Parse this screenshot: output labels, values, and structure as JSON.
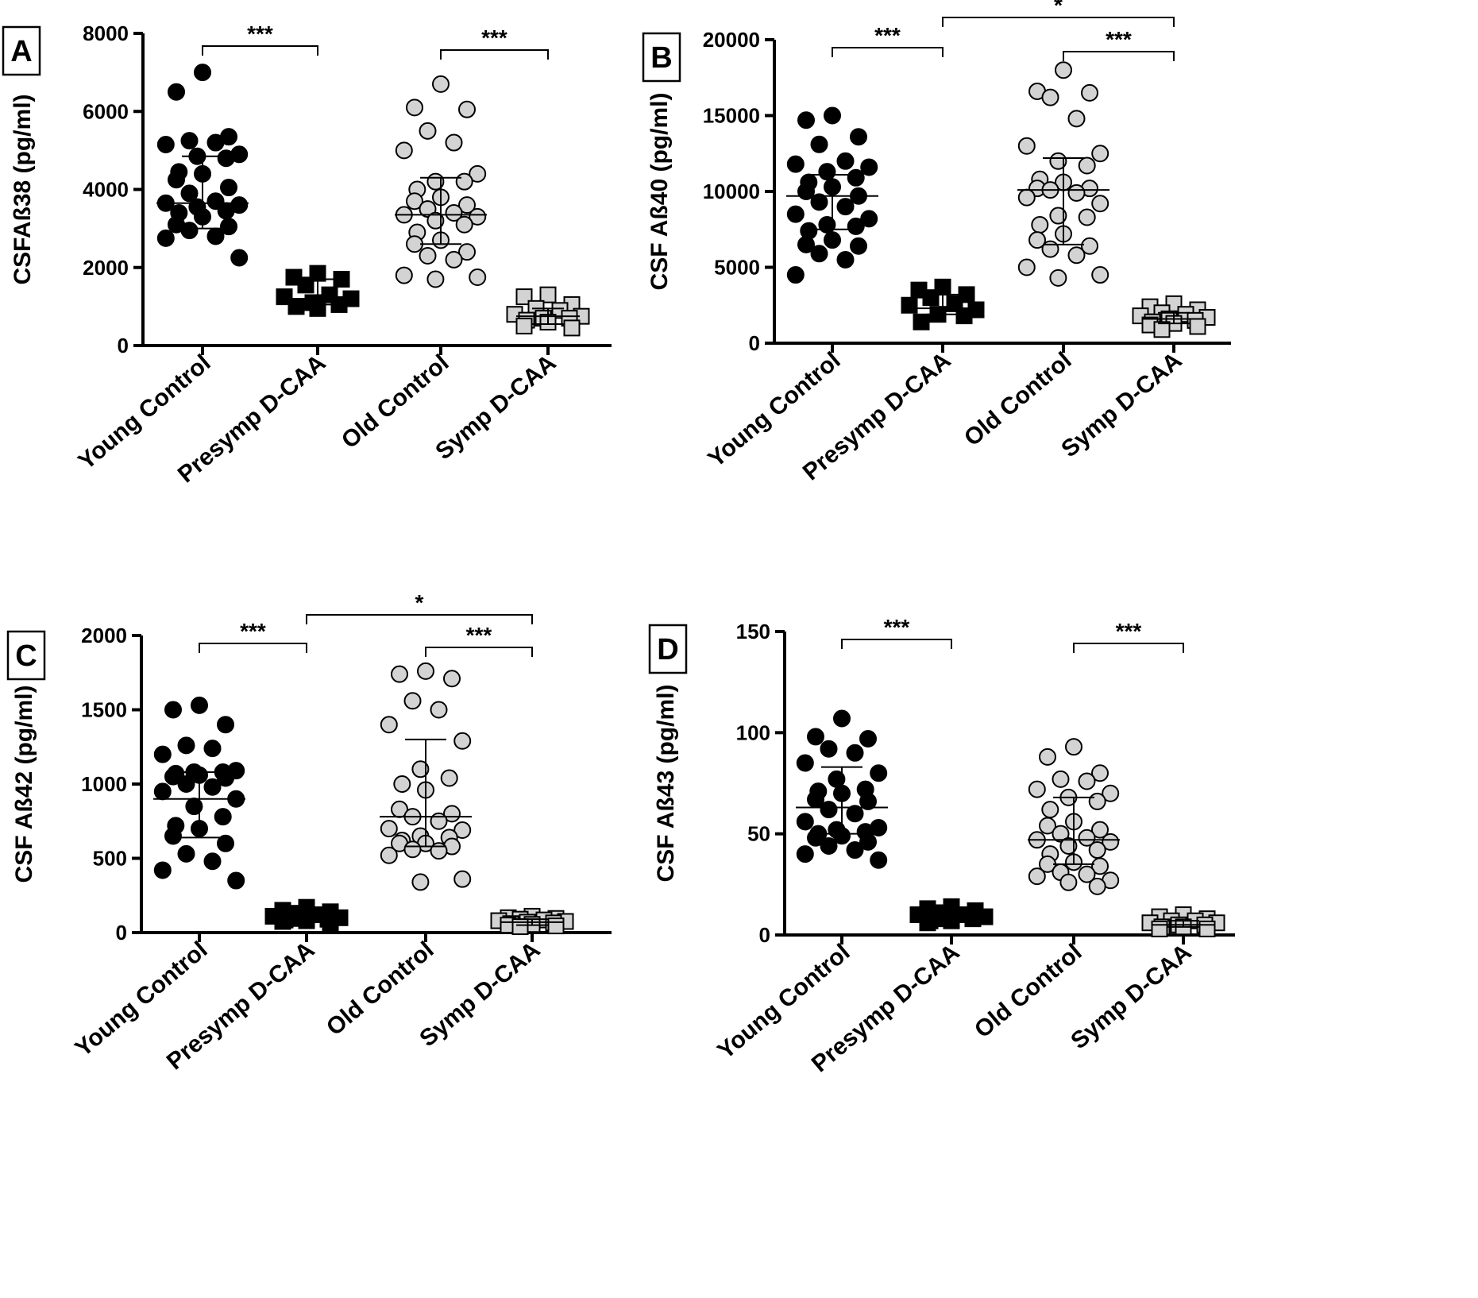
{
  "colors": {
    "young_control": "#000000",
    "presymp": "#000000",
    "old_control": "#d3d3d3",
    "symp": "#d3d3d3",
    "outline": "#000000"
  },
  "chart_data": [
    {
      "type": "scatter",
      "panel": "A",
      "ylabel": "CSFAß38 (pg/ml)",
      "categories": [
        "Young Control",
        "Presymp D-CAA",
        "Old Control",
        "Symp D-CAA"
      ],
      "ylim": [
        0,
        8000
      ],
      "yticks": [
        "0",
        "2000",
        "4000",
        "6000",
        "8000"
      ],
      "ytick_values": [
        0,
        2000,
        4000,
        6000,
        8000
      ],
      "series": [
        {
          "name": "Young Control",
          "marker": "circle",
          "fill": "black",
          "values": [
            7000,
            6500,
            5350,
            5250,
            5200,
            5150,
            4900,
            4850,
            4800,
            4450,
            4400,
            4250,
            4050,
            3900,
            3700,
            3650,
            3600,
            3550,
            3450,
            3400,
            3300,
            3100,
            3050,
            2950,
            2800,
            2750,
            2250
          ],
          "median": 3650,
          "iqr": [
            3000,
            4850
          ]
        },
        {
          "name": "Presymp D-CAA",
          "marker": "square",
          "fill": "black",
          "values": [
            1850,
            1750,
            1700,
            1550,
            1300,
            1250,
            1200,
            1100,
            1050,
            1000,
            950
          ],
          "median": 1200,
          "iqr": [
            1050,
            1700
          ]
        },
        {
          "name": "Old Control",
          "marker": "circle",
          "fill": "lightgray",
          "values": [
            6700,
            6100,
            6050,
            5500,
            5200,
            5000,
            4400,
            4200,
            4200,
            4000,
            3800,
            3700,
            3600,
            3500,
            3400,
            3350,
            3300,
            3200,
            3100,
            2900,
            2700,
            2600,
            2400,
            2300,
            2200,
            1800,
            1750,
            1700
          ],
          "median": 3350,
          "iqr": [
            2600,
            4300
          ]
        },
        {
          "name": "Symp D-CAA",
          "marker": "square",
          "fill": "lightgray",
          "values": [
            1300,
            1250,
            1050,
            950,
            900,
            800,
            750,
            700,
            700,
            650,
            600,
            500,
            450
          ],
          "median": 750,
          "iqr": [
            550,
            950
          ]
        }
      ],
      "significance": [
        {
          "from": 0,
          "to": 1,
          "label": "***"
        },
        {
          "from": 2,
          "to": 3,
          "label": "***"
        }
      ]
    },
    {
      "type": "scatter",
      "panel": "B",
      "ylabel": "CSF Aß40 (pg/ml)",
      "categories": [
        "Young Control",
        "Presymp D-CAA",
        "Old Control",
        "Symp D-CAA"
      ],
      "ylim": [
        0,
        20000
      ],
      "yticks": [
        "0",
        "5000",
        "10000",
        "15000",
        "20000"
      ],
      "ytick_values": [
        0,
        5000,
        10000,
        15000,
        20000
      ],
      "series": [
        {
          "name": "Young Control",
          "marker": "circle",
          "fill": "black",
          "values": [
            15000,
            14700,
            13600,
            13100,
            12000,
            11800,
            11600,
            11300,
            10900,
            10600,
            10300,
            10000,
            9700,
            9300,
            9000,
            8500,
            8200,
            7800,
            7700,
            7400,
            6800,
            6500,
            6400,
            5900,
            5500,
            4500
          ],
          "median": 9700,
          "iqr": [
            7500,
            11100
          ]
        },
        {
          "name": "Presymp D-CAA",
          "marker": "square",
          "fill": "black",
          "values": [
            3700,
            3500,
            3200,
            3000,
            2600,
            2500,
            2200,
            1900,
            1800,
            1400
          ],
          "median": 2300,
          "iqr": [
            1900,
            3200
          ]
        },
        {
          "name": "Old Control",
          "marker": "circle",
          "fill": "lightgray",
          "values": [
            18000,
            16600,
            16500,
            16200,
            14800,
            13000,
            12500,
            12000,
            11700,
            10800,
            10600,
            10200,
            10200,
            10100,
            9900,
            9600,
            9200,
            8400,
            8300,
            7800,
            7200,
            6800,
            6400,
            6200,
            5800,
            5000,
            4500,
            4300
          ],
          "median": 10100,
          "iqr": [
            6500,
            12200
          ]
        },
        {
          "name": "Symp D-CAA",
          "marker": "square",
          "fill": "lightgray",
          "values": [
            2600,
            2400,
            2200,
            2000,
            1900,
            1800,
            1700,
            1600,
            1500,
            1400,
            1300,
            1200,
            1100,
            900
          ],
          "median": 1600,
          "iqr": [
            1300,
            2000
          ]
        }
      ],
      "significance": [
        {
          "from": 0,
          "to": 1,
          "label": "***"
        },
        {
          "from": 1,
          "to": 3,
          "label": "*"
        },
        {
          "from": 2,
          "to": 3,
          "label": "***"
        }
      ]
    },
    {
      "type": "scatter",
      "panel": "C",
      "ylabel": "CSF Aß42 (pg/ml)",
      "categories": [
        "Young Control",
        "Presymp D-CAA",
        "Old Control",
        "Symp D-CAA"
      ],
      "ylim": [
        0,
        2000
      ],
      "yticks": [
        "0",
        "500",
        "1000",
        "1500",
        "2000"
      ],
      "ytick_values": [
        0,
        500,
        1000,
        1500,
        2000
      ],
      "series": [
        {
          "name": "Young Control",
          "marker": "circle",
          "fill": "black",
          "values": [
            1530,
            1500,
            1400,
            1260,
            1240,
            1200,
            1090,
            1080,
            1080,
            1070,
            1060,
            1050,
            1040,
            1000,
            980,
            950,
            900,
            850,
            780,
            720,
            700,
            650,
            600,
            530,
            480,
            420,
            350
          ],
          "median": 900,
          "iqr": [
            640,
            1080
          ]
        },
        {
          "name": "Presymp D-CAA",
          "marker": "square",
          "fill": "black",
          "values": [
            170,
            150,
            140,
            130,
            120,
            110,
            100,
            95,
            90,
            85,
            80,
            75,
            60
          ],
          "median": 110,
          "iqr": [
            80,
            140
          ]
        },
        {
          "name": "Old Control",
          "marker": "circle",
          "fill": "lightgray",
          "values": [
            1760,
            1740,
            1710,
            1560,
            1500,
            1400,
            1290,
            1100,
            1040,
            1000,
            960,
            830,
            800,
            780,
            750,
            700,
            690,
            650,
            640,
            620,
            600,
            600,
            580,
            560,
            550,
            520,
            360,
            340
          ],
          "median": 780,
          "iqr": [
            580,
            1300
          ]
        },
        {
          "name": "Symp D-CAA",
          "marker": "square",
          "fill": "lightgray",
          "values": [
            110,
            100,
            95,
            90,
            85,
            80,
            75,
            70,
            65,
            60,
            55,
            50,
            45,
            40
          ],
          "median": 70,
          "iqr": [
            50,
            90
          ]
        }
      ],
      "significance": [
        {
          "from": 0,
          "to": 1,
          "label": "***"
        },
        {
          "from": 1,
          "to": 3,
          "label": "*"
        },
        {
          "from": 2,
          "to": 3,
          "label": "***"
        }
      ]
    },
    {
      "type": "scatter",
      "panel": "D",
      "ylabel": "CSF Aß43 (pg/ml)",
      "categories": [
        "Young Control",
        "Presymp D-CAA",
        "Old Control",
        "Symp D-CAA"
      ],
      "ylim": [
        0,
        150
      ],
      "yticks": [
        "0",
        "50",
        "100",
        "150"
      ],
      "ytick_values": [
        0,
        50,
        100,
        150
      ],
      "series": [
        {
          "name": "Young Control",
          "marker": "circle",
          "fill": "black",
          "values": [
            107,
            98,
            97,
            92,
            90,
            85,
            80,
            77,
            72,
            71,
            70,
            67,
            66,
            62,
            60,
            56,
            53,
            52,
            51,
            50,
            49,
            48,
            46,
            44,
            42,
            40,
            37
          ],
          "median": 63,
          "iqr": [
            50,
            83
          ]
        },
        {
          "name": "Presymp D-CAA",
          "marker": "square",
          "fill": "black",
          "values": [
            14,
            13,
            12,
            11,
            10,
            10,
            9,
            8,
            8,
            7,
            7,
            6
          ],
          "median": 10,
          "iqr": [
            8,
            12
          ]
        },
        {
          "name": "Old Control",
          "marker": "circle",
          "fill": "lightgray",
          "values": [
            93,
            88,
            80,
            77,
            76,
            72,
            70,
            68,
            66,
            62,
            56,
            54,
            52,
            50,
            48,
            47,
            46,
            44,
            42,
            40,
            36,
            35,
            34,
            31,
            30,
            29,
            27,
            26,
            24
          ],
          "median": 47,
          "iqr": [
            35,
            68
          ]
        },
        {
          "name": "Symp D-CAA",
          "marker": "square",
          "fill": "lightgray",
          "values": [
            10,
            9,
            8,
            7,
            7,
            6,
            6,
            5,
            5,
            4,
            4,
            3,
            3
          ],
          "median": 5,
          "iqr": [
            4,
            7
          ]
        }
      ],
      "significance": [
        {
          "from": 0,
          "to": 1,
          "label": "***"
        },
        {
          "from": 2,
          "to": 3,
          "label": "***"
        }
      ]
    }
  ]
}
